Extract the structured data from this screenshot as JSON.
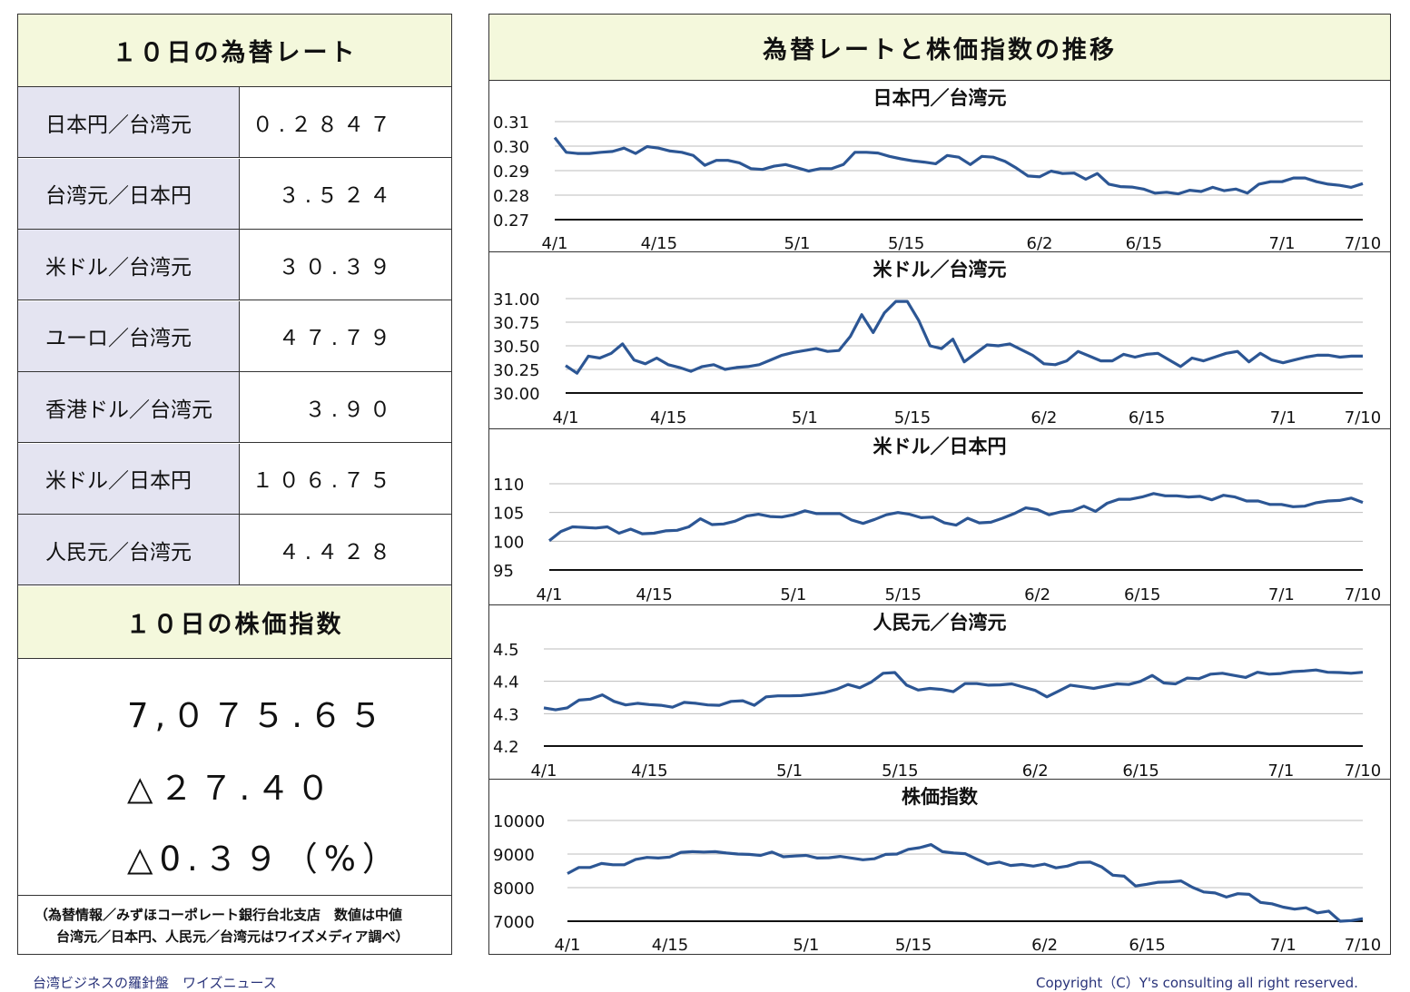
{
  "left": {
    "rates_title": "１０日の為替レート",
    "rates": [
      {
        "label": "日本円／台湾元",
        "value": "０.２８４７"
      },
      {
        "label": "台湾元／日本円",
        "value": "３.５２４"
      },
      {
        "label": "米ドル／台湾元",
        "value": "３０.３９"
      },
      {
        "label": "ユーロ／台湾元",
        "value": "４７.７９"
      },
      {
        "label": "香港ドル／台湾元",
        "value": "３.９０"
      },
      {
        "label": "米ドル／日本円",
        "value": "１０６.７５"
      },
      {
        "label": "人民元／台湾元",
        "value": "４.４２８"
      }
    ],
    "index_title": "１０日の株価指数",
    "index_value": "7,０７５.６５",
    "index_change": "△２７.４０",
    "index_change_pct": "△0.３９（%）",
    "note_line1": "（為替情報／みずほコーポレート銀行台北支店　数値は中値",
    "note_line2": "台湾元／日本円、人民元／台湾元はワイズメディア調べ）"
  },
  "right": {
    "title": "為替レートと株価指数の推移"
  },
  "footer": {
    "left": "台湾ビジネスの羅針盤　ワイズニュース",
    "right": "Copyright（C）Y's consulting all right reserved."
  },
  "chart_data": [
    {
      "type": "line",
      "title": "日本円／台湾元",
      "x_tick_labels": [
        "4/1",
        "4/15",
        "5/1",
        "5/15",
        "6/2",
        "6/15",
        "7/1",
        "7/10"
      ],
      "y_ticks": [
        "0.31",
        "0.30",
        "0.29",
        "0.28",
        "0.27"
      ],
      "ylim": [
        0.27,
        0.31
      ],
      "color": "#2c5694",
      "values": [
        0.3035,
        0.2975,
        0.297,
        0.297,
        0.2975,
        0.2978,
        0.2992,
        0.297,
        0.2998,
        0.2992,
        0.298,
        0.2975,
        0.2962,
        0.2922,
        0.2942,
        0.2942,
        0.2932,
        0.2908,
        0.2905,
        0.2918,
        0.2925,
        0.2912,
        0.2898,
        0.2908,
        0.2908,
        0.2925,
        0.2975,
        0.2975,
        0.2972,
        0.2958,
        0.2948,
        0.294,
        0.2935,
        0.2928,
        0.2962,
        0.2955,
        0.2925,
        0.2958,
        0.2955,
        0.2938,
        0.291,
        0.2878,
        0.2875,
        0.2898,
        0.2888,
        0.289,
        0.2865,
        0.2888,
        0.2845,
        0.2835,
        0.2833,
        0.2825,
        0.2808,
        0.2812,
        0.2805,
        0.282,
        0.2815,
        0.2832,
        0.2818,
        0.2825,
        0.2808,
        0.2845,
        0.2855,
        0.2855,
        0.287,
        0.287,
        0.2855,
        0.2845,
        0.284,
        0.2832,
        0.2847
      ]
    },
    {
      "type": "line",
      "title": "米ドル／台湾元",
      "x_tick_labels": [
        "4/1",
        "4/15",
        "5/1",
        "5/15",
        "6/2",
        "6/15",
        "7/1",
        "7/10"
      ],
      "y_ticks": [
        "31.00",
        "30.75",
        "30.50",
        "30.25",
        "30.00"
      ],
      "ylim": [
        30.0,
        31.0
      ],
      "color": "#2c5694",
      "values": [
        30.29,
        30.21,
        30.39,
        30.37,
        30.42,
        30.52,
        30.35,
        30.31,
        30.37,
        30.3,
        30.27,
        30.23,
        30.28,
        30.3,
        30.25,
        30.27,
        30.28,
        30.3,
        30.35,
        30.4,
        30.43,
        30.45,
        30.47,
        30.44,
        30.45,
        30.6,
        30.83,
        30.64,
        30.85,
        30.97,
        30.97,
        30.77,
        30.5,
        30.47,
        30.57,
        30.33,
        30.42,
        30.51,
        30.5,
        30.52,
        30.46,
        30.4,
        30.31,
        30.3,
        30.34,
        30.44,
        30.39,
        30.34,
        30.34,
        30.41,
        30.38,
        30.41,
        30.42,
        30.35,
        30.28,
        30.37,
        30.34,
        30.38,
        30.42,
        30.44,
        30.33,
        30.42,
        30.35,
        30.32,
        30.35,
        30.38,
        30.4,
        30.4,
        30.38,
        30.39,
        30.39
      ]
    },
    {
      "type": "line",
      "title": "米ドル／日本円",
      "x_tick_labels": [
        "4/1",
        "4/15",
        "5/1",
        "5/15",
        "6/2",
        "6/15",
        "7/1",
        "7/10"
      ],
      "y_ticks": [
        "110",
        "105",
        "100",
        "95"
      ],
      "ylim": [
        95,
        110
      ],
      "color": "#2c5694",
      "values": [
        100.1,
        101.7,
        102.5,
        102.4,
        102.3,
        102.5,
        101.4,
        102.1,
        101.3,
        101.4,
        101.8,
        101.9,
        102.5,
        103.9,
        102.9,
        103.0,
        103.5,
        104.4,
        104.7,
        104.3,
        104.2,
        104.6,
        105.3,
        104.8,
        104.8,
        104.8,
        103.7,
        103.1,
        103.8,
        104.6,
        105.0,
        104.7,
        104.1,
        104.2,
        103.2,
        102.8,
        104.0,
        103.2,
        103.3,
        104.0,
        104.8,
        105.8,
        105.5,
        104.6,
        105.1,
        105.3,
        106.1,
        105.2,
        106.6,
        107.3,
        107.3,
        107.7,
        108.3,
        107.9,
        107.9,
        107.7,
        107.8,
        107.2,
        108.0,
        107.7,
        107.0,
        107.0,
        106.4,
        106.4,
        106.0,
        106.1,
        106.7,
        107.0,
        107.1,
        107.5,
        106.75
      ]
    },
    {
      "type": "line",
      "title": "人民元／台湾元",
      "x_tick_labels": [
        "4/1",
        "4/15",
        "5/1",
        "5/15",
        "6/2",
        "6/15",
        "7/1",
        "7/10"
      ],
      "y_ticks": [
        "4.5",
        "4.4",
        "4.3",
        "4.2"
      ],
      "ylim": [
        4.2,
        4.5
      ],
      "color": "#2c5694",
      "values": [
        4.318,
        4.312,
        4.318,
        4.342,
        4.345,
        4.358,
        4.338,
        4.327,
        4.332,
        4.328,
        4.326,
        4.32,
        4.335,
        4.332,
        4.327,
        4.326,
        4.338,
        4.34,
        4.326,
        4.352,
        4.355,
        4.355,
        4.356,
        4.36,
        4.365,
        4.375,
        4.39,
        4.38,
        4.398,
        4.425,
        4.427,
        4.388,
        4.373,
        4.378,
        4.375,
        4.368,
        4.393,
        4.393,
        4.388,
        4.389,
        4.392,
        4.382,
        4.372,
        4.352,
        4.37,
        4.388,
        4.383,
        4.378,
        4.385,
        4.392,
        4.39,
        4.4,
        4.418,
        4.395,
        4.392,
        4.41,
        4.408,
        4.422,
        4.425,
        4.418,
        4.412,
        4.428,
        4.422,
        4.424,
        4.43,
        4.432,
        4.435,
        4.428,
        4.427,
        4.425,
        4.428
      ]
    },
    {
      "type": "line",
      "title": "株価指数",
      "x_tick_labels": [
        "4/1",
        "4/15",
        "5/1",
        "5/15",
        "6/2",
        "6/15",
        "7/1",
        "7/10"
      ],
      "y_ticks": [
        "10000",
        "9000",
        "8000",
        "7000"
      ],
      "ylim": [
        7000,
        10000
      ],
      "color": "#2c5694",
      "values": [
        8420,
        8600,
        8600,
        8720,
        8680,
        8680,
        8840,
        8900,
        8880,
        8910,
        9050,
        9070,
        9060,
        9070,
        9030,
        9000,
        8990,
        8960,
        9060,
        8920,
        8940,
        8960,
        8880,
        8890,
        8930,
        8880,
        8830,
        8860,
        8990,
        9000,
        9140,
        9190,
        9280,
        9070,
        9030,
        9010,
        8850,
        8700,
        8760,
        8660,
        8690,
        8640,
        8700,
        8590,
        8640,
        8750,
        8760,
        8620,
        8370,
        8340,
        8050,
        8100,
        8160,
        8170,
        8200,
        8010,
        7870,
        7840,
        7720,
        7820,
        7800,
        7560,
        7520,
        7420,
        7360,
        7400,
        7250,
        7300,
        7000,
        7020,
        7075.65
      ]
    }
  ]
}
